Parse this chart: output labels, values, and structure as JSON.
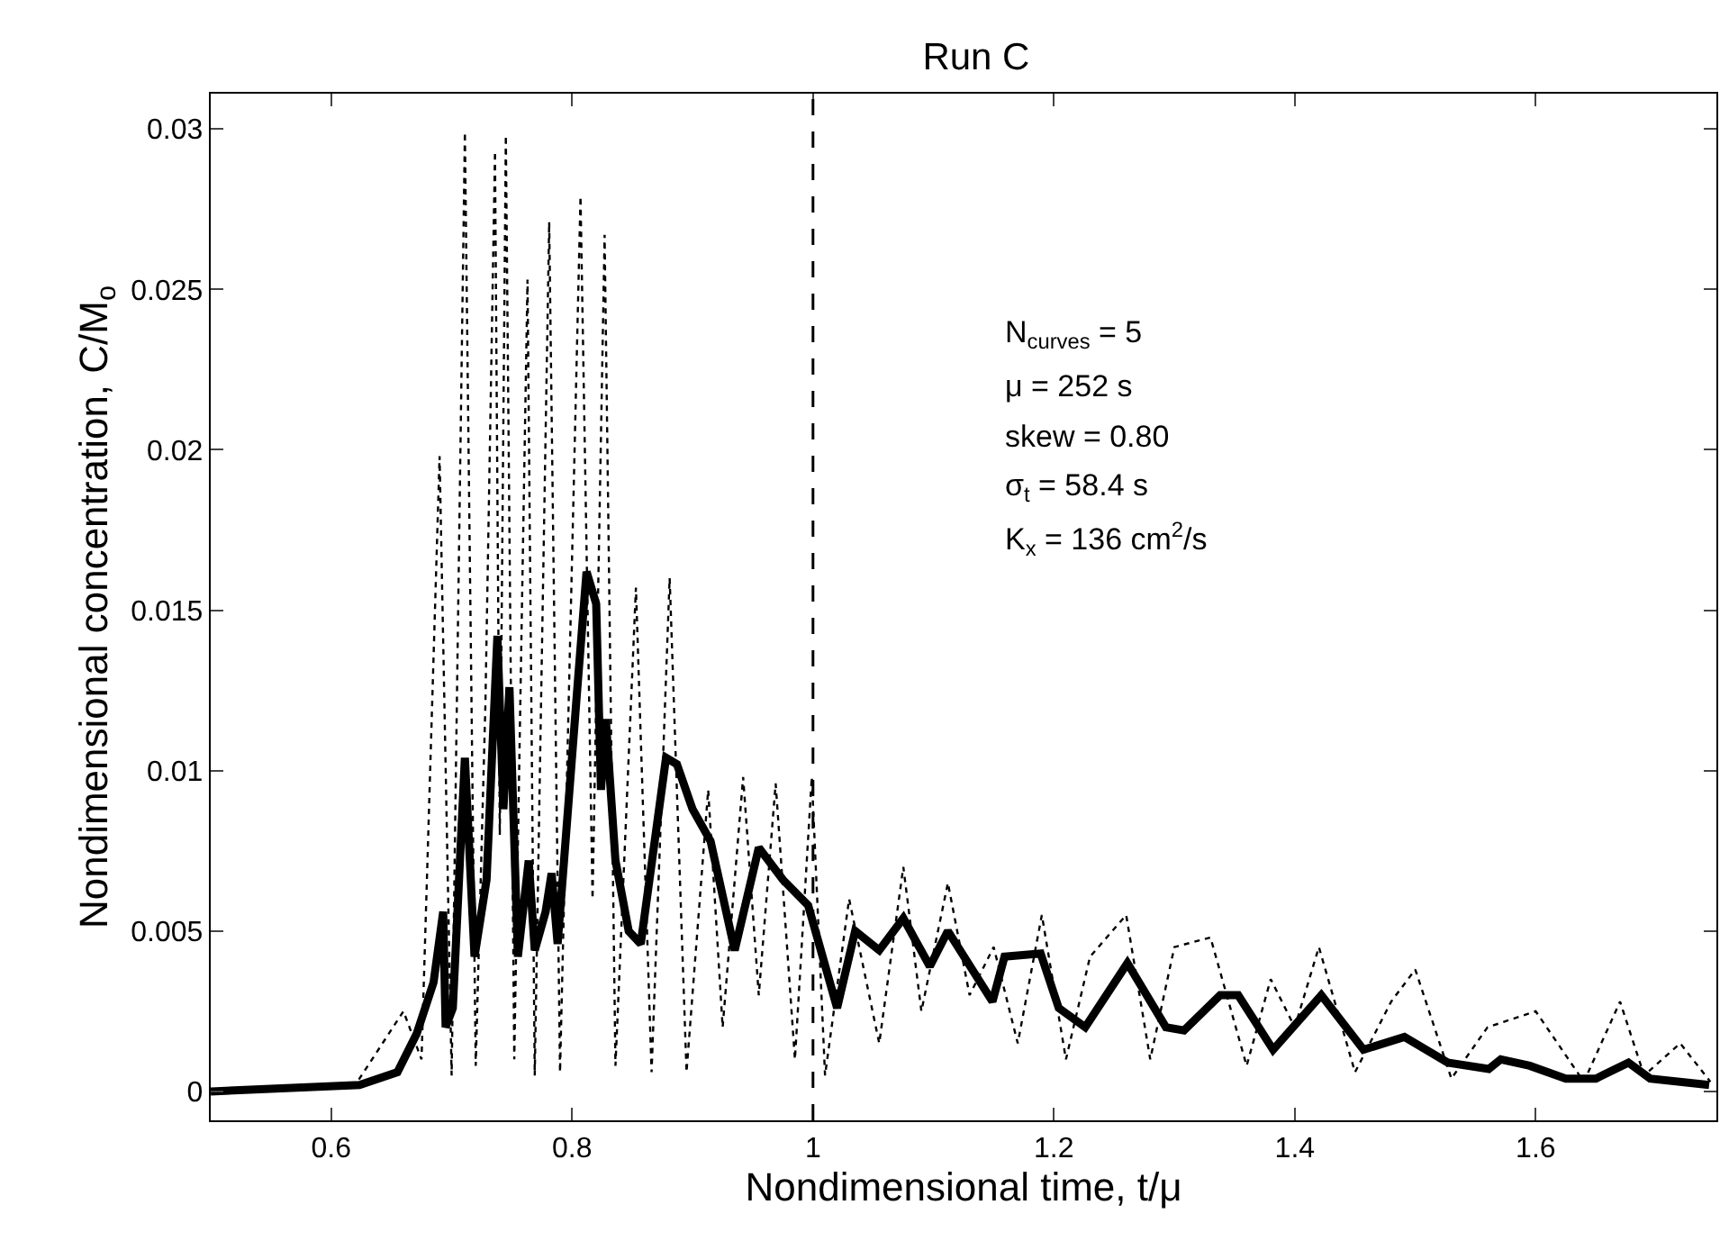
{
  "chart_data": {
    "type": "line",
    "title": "Run C",
    "xlabel": "Nondimensional time, t/μ",
    "ylabel": "Nondimensional concentration, C/M$_{o}$",
    "xlim": [
      0.5,
      1.75
    ],
    "ylim": [
      -0.0009,
      0.0311
    ],
    "xticks": [
      0.6,
      0.8,
      1,
      1.2,
      1.4,
      1.6
    ],
    "yticks": [
      0,
      0.005,
      0.01,
      0.015,
      0.02,
      0.025,
      0.03
    ],
    "ref_lines": [
      {
        "axis": "x",
        "value": 1,
        "color": "#000000",
        "line_style": "dashed"
      }
    ],
    "annotations": [
      "N$_{curves}$ = 5",
      "μ = 252 s",
      "skew = 0.80",
      "σ$_{t}$ = 58.4 s",
      "K$_{x}$ = 136 cm$^{2}$/s"
    ],
    "series": [
      {
        "color": "#000000",
        "line_style": "dotted",
        "x": [
          0.5,
          0.62,
          0.66,
          0.675,
          0.69,
          0.7,
          0.711,
          0.72,
          0.728,
          0.736,
          0.74,
          0.745,
          0.752,
          0.763,
          0.769,
          0.781,
          0.79,
          0.807,
          0.817,
          0.827,
          0.836,
          0.853,
          0.866,
          0.881,
          0.895,
          0.913,
          0.925,
          0.942,
          0.955,
          0.969,
          0.985,
          0.999,
          1.01,
          1.03,
          1.055,
          1.075,
          1.09,
          1.112,
          1.13,
          1.15,
          1.17,
          1.19,
          1.21,
          1.23,
          1.26,
          1.28,
          1.3,
          1.33,
          1.36,
          1.38,
          1.4,
          1.42,
          1.45,
          1.48,
          1.5,
          1.53,
          1.56,
          1.6,
          1.64,
          1.67,
          1.69,
          1.72,
          1.745
        ],
        "values": [
          0,
          0.0002,
          0.0025,
          0.001,
          0.0198,
          0.0005,
          0.0299,
          0.0008,
          0.012,
          0.0293,
          0.008,
          0.0298,
          0.001,
          0.0253,
          0.0005,
          0.0271,
          0.0006,
          0.0279,
          0.006,
          0.0267,
          0.0008,
          0.0157,
          0.0006,
          0.016,
          0.0006,
          0.0094,
          0.002,
          0.0098,
          0.003,
          0.0096,
          0.001,
          0.0098,
          0.0005,
          0.006,
          0.0015,
          0.007,
          0.0025,
          0.0065,
          0.003,
          0.0045,
          0.0015,
          0.0055,
          0.001,
          0.0042,
          0.0055,
          0.001,
          0.0045,
          0.0048,
          0.0008,
          0.0035,
          0.002,
          0.0045,
          0.0006,
          0.0028,
          0.0038,
          0.0004,
          0.002,
          0.0025,
          0.0003,
          0.0028,
          0.0005,
          0.0015,
          0.0003
        ]
      },
      {
        "color": "#000000",
        "line_style": "solid",
        "x": [
          0.5,
          0.6235,
          0.655,
          0.671,
          0.685,
          0.693,
          0.695,
          0.701,
          0.711,
          0.719,
          0.729,
          0.738,
          0.743,
          0.748,
          0.755,
          0.764,
          0.769,
          0.778,
          0.783,
          0.788,
          0.804,
          0.812,
          0.82,
          0.824,
          0.828,
          0.836,
          0.847,
          0.857,
          0.878,
          0.887,
          0.9,
          0.915,
          0.935,
          0.955,
          0.975,
          0.996,
          1.02,
          1.035,
          1.055,
          1.075,
          1.097,
          1.112,
          1.149,
          1.159,
          1.189,
          1.204,
          1.226,
          1.261,
          1.293,
          1.308,
          1.338,
          1.353,
          1.382,
          1.422,
          1.457,
          1.491,
          1.527,
          1.561,
          1.571,
          1.595,
          1.625,
          1.65,
          1.677,
          1.695,
          1.744
        ],
        "values": [
          0,
          0.0002,
          0.0006,
          0.0018,
          0.0034,
          0.0056,
          0.002,
          0.0026,
          0.0104,
          0.0042,
          0.0066,
          0.0142,
          0.0088,
          0.0126,
          0.0042,
          0.0072,
          0.0044,
          0.0056,
          0.0068,
          0.0046,
          0.0124,
          0.0162,
          0.0152,
          0.0094,
          0.0116,
          0.0072,
          0.005,
          0.0046,
          0.0104,
          0.0102,
          0.0088,
          0.0078,
          0.0044,
          0.0076,
          0.0066,
          0.0058,
          0.0026,
          0.005,
          0.0044,
          0.0054,
          0.0039,
          0.005,
          0.0028,
          0.0042,
          0.0043,
          0.0026,
          0.002,
          0.004,
          0.002,
          0.0019,
          0.003,
          0.003,
          0.0013,
          0.003,
          0.0013,
          0.0017,
          0.0009,
          0.0007,
          0.001,
          0.0008,
          0.0004,
          0.0004,
          0.0009,
          0.0004,
          0.0002
        ]
      }
    ]
  }
}
